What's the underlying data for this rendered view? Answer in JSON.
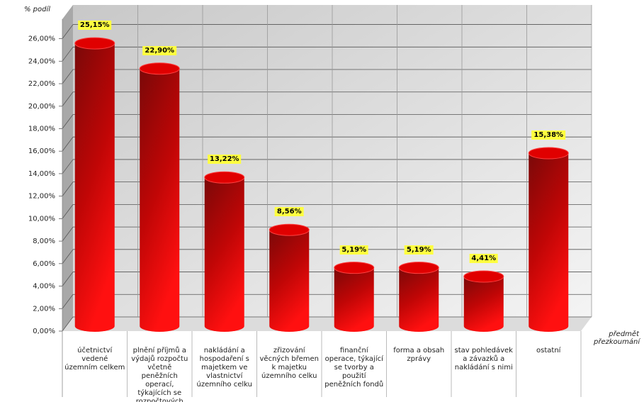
{
  "chart_data": {
    "type": "bar",
    "y_axis_title": "% podíl",
    "x_axis_title": "předmět přezkoumání",
    "categories": [
      "účetnictví vedené územním celkem",
      "plnění příjmů a výdajů rozpočtu včetně peněžních operací, týkajících se rozpočtových prostředků",
      "nakládání a hospodaření s majetkem ve vlastnictví územního celku",
      "zřizování věcných břemen k majetku územního celku",
      "finanční operace, týkající se tvorby a použití peněžních fondů",
      "forma a obsah zprávy",
      "stav pohledávek a závazků a nakládání s nimi",
      "ostatní"
    ],
    "values": [
      25.15,
      22.9,
      13.22,
      8.56,
      5.19,
      5.19,
      4.41,
      15.38
    ],
    "value_labels": [
      "25,15%",
      "22,90%",
      "13,22%",
      "8,56%",
      "5,19%",
      "5,19%",
      "4,41%",
      "15,38%"
    ],
    "color": "#e00000",
    "ylim": [
      0,
      29
    ],
    "yticks": [
      {
        "value": 0,
        "label": "0,00%"
      },
      {
        "value": 2,
        "label": "2,00%"
      },
      {
        "value": 4,
        "label": "4,00%"
      },
      {
        "value": 6,
        "label": "6,00%"
      },
      {
        "value": 8,
        "label": "8,00%"
      },
      {
        "value": 10,
        "label": "10,00%"
      },
      {
        "value": 12,
        "label": "12,00%"
      },
      {
        "value": 14,
        "label": "14,00%"
      },
      {
        "value": 16,
        "label": "16,00%"
      },
      {
        "value": 18,
        "label": "18,00%"
      },
      {
        "value": 20,
        "label": "20,00%"
      },
      {
        "value": 22,
        "label": "22,00%"
      },
      {
        "value": 24,
        "label": "24,00%"
      },
      {
        "value": 26,
        "label": "26,00%"
      }
    ],
    "grid": true
  }
}
